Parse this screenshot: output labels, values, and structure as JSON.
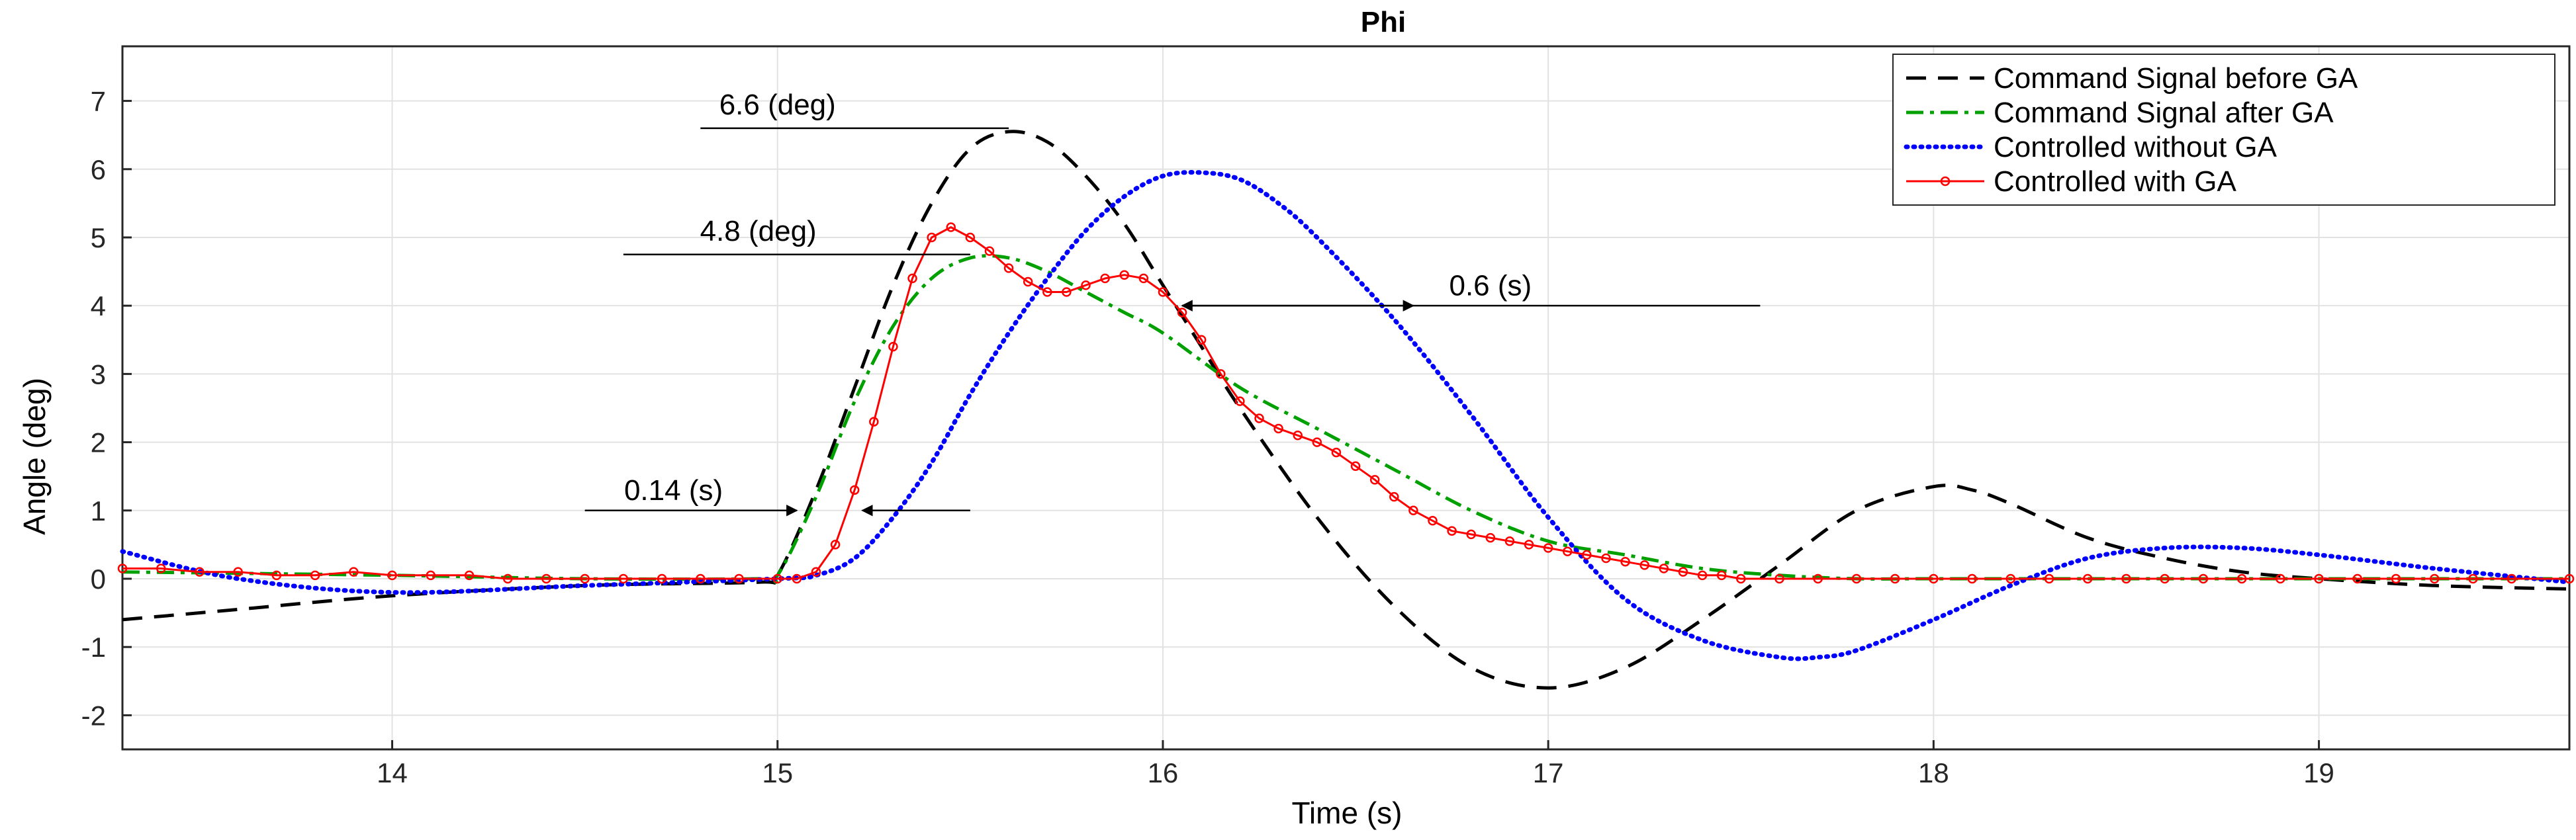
{
  "chart_data": {
    "type": "line",
    "title": "Phi",
    "xlabel": "Time (s)",
    "ylabel": "Angle (deg)",
    "xlim": [
      13.3,
      19.65
    ],
    "ylim": [
      -2.5,
      7.8
    ],
    "xticks": [
      14,
      15,
      16,
      17,
      18,
      19
    ],
    "yticks": [
      -2,
      -1,
      0,
      1,
      2,
      3,
      4,
      5,
      6,
      7
    ],
    "xtick_labels": [
      "14",
      "15",
      "16",
      "17",
      "18",
      "19"
    ],
    "ytick_labels": [
      "-2",
      "-1",
      "0",
      "1",
      "2",
      "3",
      "4",
      "5",
      "6",
      "7"
    ],
    "grid": true,
    "legend_position": "top-right",
    "series": [
      {
        "name": "Command Signal before GA",
        "color": "#000000",
        "style": "dashed",
        "x": [
          13.3,
          13.6,
          14.0,
          14.5,
          14.95,
          15.0,
          15.1,
          15.2,
          15.3,
          15.4,
          15.5,
          15.6,
          15.7,
          15.8,
          15.9,
          16.0,
          16.1,
          16.2,
          16.4,
          16.6,
          16.8,
          17.0,
          17.2,
          17.4,
          17.6,
          17.8,
          18.0,
          18.1,
          18.2,
          18.4,
          18.6,
          18.8,
          19.0,
          19.3,
          19.65
        ],
        "y": [
          -0.6,
          -0.45,
          -0.25,
          -0.1,
          -0.05,
          0.05,
          1.3,
          2.8,
          4.3,
          5.5,
          6.3,
          6.55,
          6.4,
          5.9,
          5.2,
          4.3,
          3.4,
          2.5,
          0.9,
          -0.4,
          -1.3,
          -1.6,
          -1.3,
          -0.6,
          0.2,
          1.0,
          1.35,
          1.3,
          1.1,
          0.6,
          0.3,
          0.1,
          0.0,
          -0.1,
          -0.15
        ]
      },
      {
        "name": "Command Signal after GA",
        "color": "#00a000",
        "style": "dashdot",
        "x": [
          13.3,
          14.0,
          14.5,
          14.95,
          15.0,
          15.1,
          15.2,
          15.3,
          15.4,
          15.5,
          15.6,
          15.7,
          15.8,
          15.9,
          16.0,
          16.2,
          16.4,
          16.6,
          16.8,
          17.0,
          17.2,
          17.4,
          17.6,
          17.8,
          18.0,
          18.5,
          19.0,
          19.65
        ],
        "y": [
          0.1,
          0.05,
          0.0,
          0.0,
          0.05,
          1.2,
          2.6,
          3.7,
          4.4,
          4.7,
          4.7,
          4.5,
          4.2,
          3.9,
          3.6,
          2.8,
          2.2,
          1.6,
          1.0,
          0.55,
          0.35,
          0.15,
          0.05,
          0.0,
          0.0,
          0.0,
          0.0,
          0.0
        ]
      },
      {
        "name": "Controlled without GA",
        "color": "#0000ff",
        "style": "dotted",
        "x": [
          13.3,
          13.6,
          14.0,
          14.5,
          15.0,
          15.1,
          15.2,
          15.3,
          15.4,
          15.5,
          15.6,
          15.7,
          15.8,
          15.9,
          16.0,
          16.1,
          16.2,
          16.3,
          16.4,
          16.6,
          16.8,
          17.0,
          17.2,
          17.4,
          17.6,
          17.7,
          17.8,
          18.0,
          18.2,
          18.4,
          18.6,
          18.8,
          19.0,
          19.3,
          19.65
        ],
        "y": [
          0.4,
          0.0,
          -0.2,
          -0.1,
          0.0,
          0.05,
          0.3,
          0.9,
          1.7,
          2.7,
          3.6,
          4.4,
          5.1,
          5.6,
          5.9,
          5.95,
          5.85,
          5.5,
          5.0,
          3.8,
          2.4,
          0.9,
          -0.3,
          -0.9,
          -1.15,
          -1.15,
          -1.05,
          -0.6,
          -0.1,
          0.3,
          0.45,
          0.45,
          0.35,
          0.15,
          -0.05
        ]
      },
      {
        "name": "Controlled with GA",
        "color": "#ff0000",
        "style": "solid-markers",
        "x": [
          13.3,
          13.4,
          13.5,
          13.6,
          13.7,
          13.8,
          13.9,
          14.0,
          14.1,
          14.2,
          14.3,
          14.4,
          14.5,
          14.6,
          14.7,
          14.8,
          14.9,
          15.0,
          15.05,
          15.1,
          15.15,
          15.2,
          15.25,
          15.3,
          15.35,
          15.4,
          15.45,
          15.5,
          15.55,
          15.6,
          15.65,
          15.7,
          15.75,
          15.8,
          15.85,
          15.9,
          15.95,
          16.0,
          16.05,
          16.1,
          16.15,
          16.2,
          16.25,
          16.3,
          16.35,
          16.4,
          16.45,
          16.5,
          16.55,
          16.6,
          16.65,
          16.7,
          16.75,
          16.8,
          16.85,
          16.9,
          16.95,
          17.0,
          17.05,
          17.1,
          17.15,
          17.2,
          17.25,
          17.3,
          17.35,
          17.4,
          17.45,
          17.5,
          17.6,
          17.7,
          17.8,
          17.9,
          18.0,
          18.1,
          18.2,
          18.3,
          18.4,
          18.5,
          18.6,
          18.7,
          18.8,
          18.9,
          19.0,
          19.1,
          19.2,
          19.3,
          19.4,
          19.5,
          19.65
        ],
        "y": [
          0.15,
          0.15,
          0.1,
          0.1,
          0.05,
          0.05,
          0.1,
          0.05,
          0.05,
          0.05,
          0.0,
          0.0,
          0.0,
          0.0,
          0.0,
          0.0,
          0.0,
          0.0,
          0.0,
          0.1,
          0.5,
          1.3,
          2.3,
          3.4,
          4.4,
          5.0,
          5.15,
          5.0,
          4.8,
          4.55,
          4.35,
          4.2,
          4.2,
          4.3,
          4.4,
          4.45,
          4.4,
          4.2,
          3.9,
          3.5,
          3.0,
          2.6,
          2.35,
          2.2,
          2.1,
          2.0,
          1.85,
          1.65,
          1.45,
          1.2,
          1.0,
          0.85,
          0.7,
          0.65,
          0.6,
          0.55,
          0.5,
          0.45,
          0.4,
          0.35,
          0.3,
          0.25,
          0.2,
          0.15,
          0.1,
          0.05,
          0.05,
          0.0,
          0.0,
          0.0,
          0.0,
          0.0,
          0.0,
          0.0,
          0.0,
          0.0,
          0.0,
          0.0,
          0.0,
          0.0,
          0.0,
          0.0,
          0.0,
          0.0,
          0.0,
          0.0,
          0.0,
          0.0,
          0.0
        ]
      }
    ],
    "annotations": [
      {
        "text": "6.6 (deg)",
        "type": "hline",
        "x1": 14.8,
        "x2": 15.6,
        "y": 6.6,
        "text_x": 15.0,
        "text_y": 6.9
      },
      {
        "text": "4.8 (deg)",
        "type": "hline",
        "x1": 14.6,
        "x2": 15.5,
        "y": 4.75,
        "text_x": 14.95,
        "text_y": 5.05
      },
      {
        "text": "0.6 (s)",
        "type": "double-arrow",
        "x1": 16.05,
        "x2": 16.65,
        "y": 4.0,
        "line_x2": 17.55,
        "text_x": 16.85,
        "text_y": 4.25
      },
      {
        "text": "0.14 (s)",
        "type": "arrows-inward",
        "x1": 15.05,
        "x2": 15.22,
        "y": 1.0,
        "left_start": 14.5,
        "right_end": 15.5,
        "text_x": 14.73,
        "text_y": 1.25
      }
    ]
  }
}
